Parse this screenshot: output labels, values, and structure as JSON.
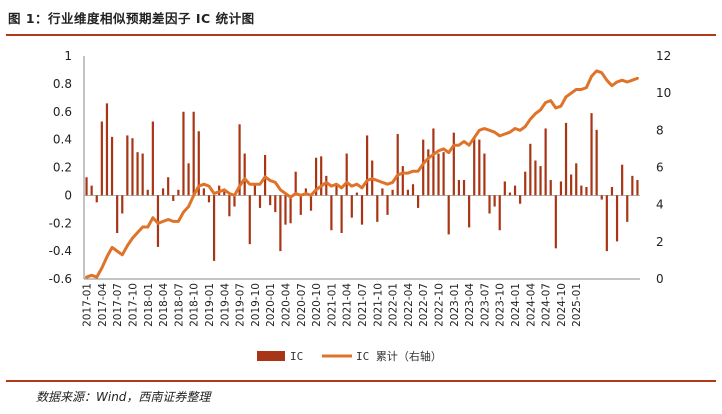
{
  "header": {
    "title": "图 1：行业维度相似预期差因子 IC 统计图"
  },
  "footer": {
    "source": "数据来源：Wind，西南证券整理"
  },
  "colors": {
    "bar": "#a83515",
    "line": "#e0732a",
    "rule": "#b03a17"
  },
  "chart_data": {
    "type": "bar",
    "y_left": {
      "ylim": [
        -0.6,
        1.0
      ],
      "ticks": [
        -0.6,
        -0.4,
        -0.2,
        0,
        0.2,
        0.4,
        0.6,
        0.8,
        1
      ]
    },
    "y_right": {
      "ylim": [
        0,
        12
      ],
      "ticks": [
        0,
        2,
        4,
        6,
        8,
        10,
        12
      ]
    },
    "x_tick_labels": [
      "2017-01",
      "2017-04",
      "2017-07",
      "2017-10",
      "2018-01",
      "2018-04",
      "2018-07",
      "2018-10",
      "2019-01",
      "2019-04",
      "2019-07",
      "2019-10",
      "2020-01",
      "2020-04",
      "2020-07",
      "2020-10",
      "2021-01",
      "2021-04",
      "2021-07",
      "2021-10",
      "2022-01",
      "2022-04",
      "2022-07",
      "2022-10",
      "2023-01",
      "2023-04",
      "2023-07",
      "2023-10",
      "2024-01",
      "2024-04",
      "2024-07",
      "2024-10",
      "2025-01"
    ],
    "x_start": "2017-01",
    "series": [
      {
        "name": "IC",
        "kind": "bar",
        "axis": "left",
        "values": [
          0.13,
          0.07,
          -0.05,
          0.53,
          0.66,
          0.42,
          -0.27,
          -0.13,
          0.43,
          0.41,
          0.31,
          0.3,
          0.04,
          0.53,
          -0.37,
          0.05,
          0.13,
          -0.04,
          0.04,
          0.6,
          0.23,
          0.6,
          0.46,
          0.05,
          -0.05,
          -0.47,
          0.07,
          0.04,
          -0.15,
          -0.08,
          0.51,
          0.3,
          -0.35,
          0.08,
          -0.09,
          0.29,
          -0.07,
          -0.12,
          -0.4,
          -0.21,
          -0.2,
          0.17,
          -0.14,
          0.05,
          -0.11,
          0.27,
          0.28,
          0.14,
          -0.25,
          0.08,
          -0.27,
          0.3,
          -0.16,
          0.02,
          -0.21,
          0.43,
          0.25,
          -0.19,
          0.05,
          -0.14,
          0.04,
          0.44,
          0.21,
          0.04,
          0.08,
          -0.09,
          0.4,
          0.33,
          0.48,
          0.3,
          0.31,
          -0.28,
          0.45,
          0.11,
          0.11,
          -0.23,
          0.42,
          0.4,
          0.3,
          -0.13,
          -0.08,
          -0.25,
          0.1,
          0.02,
          0.07,
          -0.06,
          0.17,
          0.37,
          0.25,
          0.21,
          0.48,
          0.11,
          -0.38,
          0.1,
          0.52,
          0.15,
          0.23,
          0.07,
          0.06,
          0.59,
          0.47,
          -0.03,
          -0.4,
          0.06,
          -0.33,
          0.22,
          -0.19,
          0.14,
          0.11
        ]
      },
      {
        "name": "IC 累计（右轴）",
        "kind": "line",
        "axis": "right",
        "values": [
          0.1,
          0.2,
          0.1,
          0.6,
          1.2,
          1.7,
          1.5,
          1.3,
          1.8,
          2.2,
          2.5,
          2.8,
          2.8,
          3.3,
          3.0,
          3.1,
          3.2,
          3.1,
          3.1,
          3.6,
          3.9,
          4.5,
          5.0,
          5.1,
          5.0,
          4.6,
          4.7,
          4.8,
          4.6,
          4.5,
          5.0,
          5.4,
          5.1,
          5.1,
          5.1,
          5.5,
          5.3,
          5.2,
          4.8,
          4.6,
          4.4,
          4.6,
          4.5,
          4.6,
          4.5,
          4.8,
          5.0,
          5.2,
          5.0,
          5.1,
          4.9,
          5.2,
          5.0,
          5.1,
          4.9,
          5.3,
          5.4,
          5.3,
          5.2,
          5.1,
          5.2,
          5.6,
          5.7,
          5.7,
          5.8,
          5.8,
          6.2,
          6.5,
          6.7,
          6.9,
          7.0,
          6.8,
          7.2,
          7.2,
          7.4,
          7.2,
          7.6,
          8.0,
          8.1,
          8.0,
          7.9,
          7.7,
          7.8,
          7.9,
          8.1,
          8.0,
          8.2,
          8.6,
          8.9,
          9.1,
          9.5,
          9.6,
          9.2,
          9.3,
          9.8,
          10.0,
          10.2,
          10.2,
          10.3,
          10.9,
          11.2,
          11.1,
          10.7,
          10.4,
          10.6,
          10.7,
          10.6,
          10.7,
          10.8
        ]
      }
    ],
    "legend": {
      "placement": "bottom",
      "entries": [
        "IC",
        "IC 累计（右轴）"
      ]
    }
  }
}
